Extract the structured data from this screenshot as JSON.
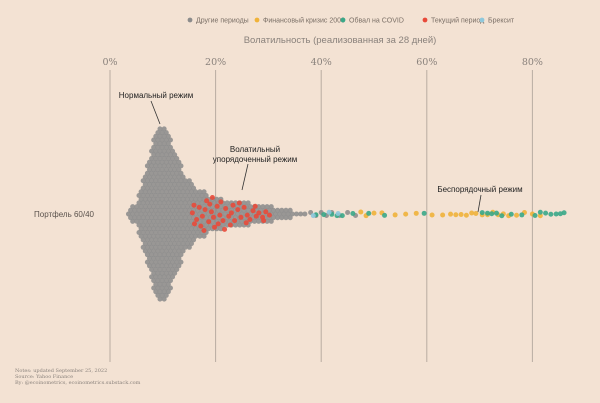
{
  "chart_data": {
    "type": "scatter",
    "title": "Волатильность (реализованная за 28 дней)",
    "y_category": "Портфель 60/40",
    "x_ticks": [
      {
        "value": 0,
        "label": "0%"
      },
      {
        "value": 20,
        "label": "20%"
      },
      {
        "value": 40,
        "label": "40%"
      },
      {
        "value": 60,
        "label": "60%"
      },
      {
        "value": 80,
        "label": "80%"
      }
    ],
    "xlim": [
      0,
      87
    ],
    "grid": "vertical",
    "legend_position": "top",
    "legend": [
      {
        "name": "Другие периоды",
        "color": "#8c8c8c"
      },
      {
        "name": "Финансовый кризис 2008",
        "color": "#f0b33a"
      },
      {
        "name": "Обвал на COVID",
        "color": "#3aa888"
      },
      {
        "name": "Текущий период",
        "color": "#e84a3a"
      },
      {
        "name": "Брексит",
        "color": "#8ec8dc"
      }
    ],
    "annotations": [
      {
        "lines": [
          "Нормальный режим"
        ],
        "x": 8.5
      },
      {
        "lines": [
          "Волатильный",
          "упорядоченный режим"
        ],
        "x": 25.5
      },
      {
        "lines": [
          "Беспорядочный режим"
        ],
        "x": 70
      }
    ],
    "series": [
      {
        "name": "Другие периоды",
        "density": [
          [
            3.5,
            3
          ],
          [
            5,
            12
          ],
          [
            6.5,
            38
          ],
          [
            8,
            70
          ],
          [
            9,
            88
          ],
          [
            10,
            88
          ],
          [
            11,
            82
          ],
          [
            12,
            68
          ],
          [
            13,
            55
          ],
          [
            14,
            42
          ],
          [
            15,
            34
          ],
          [
            16,
            28
          ],
          [
            17,
            24
          ],
          [
            18,
            22
          ],
          [
            19,
            18
          ],
          [
            20,
            16
          ],
          [
            21,
            15
          ],
          [
            22,
            14
          ],
          [
            23,
            13
          ],
          [
            24,
            14
          ],
          [
            25,
            13
          ],
          [
            26,
            12
          ],
          [
            27,
            11
          ],
          [
            28,
            10
          ],
          [
            29,
            9
          ],
          [
            30,
            8
          ],
          [
            31,
            7
          ],
          [
            32,
            6
          ],
          [
            33,
            5
          ],
          [
            34,
            4
          ],
          [
            35,
            3
          ],
          [
            36,
            3
          ],
          [
            37,
            2
          ]
        ],
        "tail_points": [
          38,
          39,
          40,
          41,
          42,
          43.5,
          45,
          46.5
        ]
      },
      {
        "name": "Текущий период",
        "points": [
          [
            15.6,
            -0.05
          ],
          [
            16.4,
            0.25
          ],
          [
            16.9,
            -0.3
          ],
          [
            17.5,
            0.1
          ],
          [
            18,
            -0.2
          ],
          [
            18.7,
            0.35
          ],
          [
            19.2,
            -0.1
          ],
          [
            19.6,
            0.15
          ],
          [
            20.3,
            -0.35
          ],
          [
            20.8,
            0.05
          ],
          [
            21.4,
            0.3
          ],
          [
            21.9,
            -0.25
          ],
          [
            22.5,
            0.1
          ],
          [
            23,
            -0.05
          ],
          [
            23.6,
            0.3
          ],
          [
            24.2,
            -0.2
          ],
          [
            24.8,
            0.15
          ],
          [
            25.4,
            -0.3
          ],
          [
            26,
            0.05
          ],
          [
            26.5,
            0.25
          ],
          [
            27.1,
            -0.15
          ],
          [
            27.7,
            0.1
          ],
          [
            28.2,
            -0.05
          ],
          [
            28.9,
            0.15
          ],
          [
            29.5,
            -0.1
          ],
          [
            30.2,
            0.05
          ],
          [
            17.2,
            0.55
          ],
          [
            18.3,
            -0.6
          ],
          [
            19.8,
            0.6
          ],
          [
            21,
            -0.55
          ],
          [
            22.8,
            0.5
          ],
          [
            24.5,
            -0.5
          ],
          [
            16,
            0.45
          ],
          [
            18.9,
            -0.45
          ],
          [
            20.5,
            0.45
          ],
          [
            23.3,
            -0.4
          ],
          [
            25.8,
            0.4
          ],
          [
            27.5,
            -0.35
          ],
          [
            29.1,
            0.3
          ],
          [
            21.7,
            0.7
          ],
          [
            19.4,
            -0.75
          ],
          [
            17.8,
            0.75
          ],
          [
            15.9,
            -0.4
          ]
        ]
      },
      {
        "name": "Финансовый кризис 2008",
        "points": [
          47.5,
          48.5,
          50,
          51.5,
          54,
          56,
          58,
          61,
          63,
          64.5,
          65.5,
          66.5,
          67.5,
          68.5,
          69.3,
          70.5,
          71.5,
          72.5,
          73.5,
          74.5,
          75.5,
          77,
          78.5,
          80,
          81.5
        ]
      },
      {
        "name": "Обвал на COVID",
        "points": [
          39,
          40.5,
          42,
          43,
          44,
          46,
          49,
          52,
          59.5,
          70.5,
          71.5,
          72.3,
          73.2,
          74.2,
          76,
          78,
          80.5,
          81.5,
          82.5,
          83.5,
          84.5,
          85.3,
          86
        ]
      },
      {
        "name": "Брексит",
        "points": [
          38.5,
          41.5,
          43.2
        ]
      }
    ]
  },
  "notes": [
    "Notes: updated September 25, 2022",
    "Source: Yahoo Finance",
    "By: @ecoinometrics, ecoinometrics.substack.com"
  ]
}
